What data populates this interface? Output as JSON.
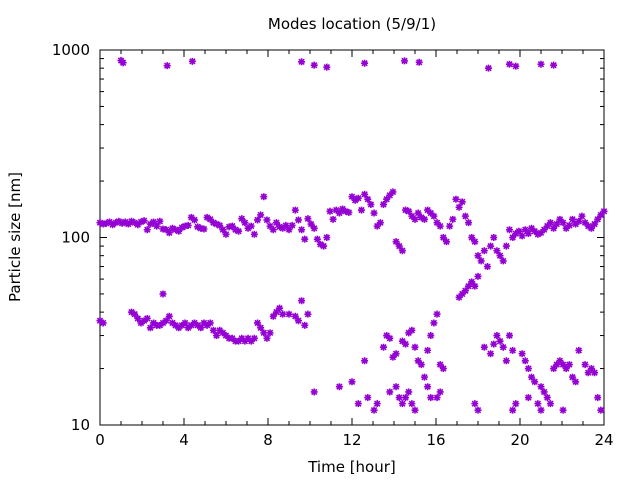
{
  "chart_data": {
    "type": "scatter",
    "title": "Modes location (5/9/1)",
    "xlabel": "Time [hour]",
    "ylabel": "Particle size [nm]",
    "xlim": [
      0,
      24
    ],
    "ylim": [
      10,
      1000
    ],
    "yscale": "log",
    "grid": false,
    "legend": "none",
    "x_ticks": [
      0,
      4,
      8,
      12,
      16,
      20,
      24
    ],
    "x_tick_labels": [
      "0",
      "4",
      "8",
      "12",
      "16",
      "20",
      "24"
    ],
    "y_ticks": [
      10,
      100,
      1000
    ],
    "y_tick_labels": [
      "10",
      "100",
      "1000"
    ],
    "marker_color": "#9400d3",
    "series": [
      {
        "points": [
          [
            0.0,
            120
          ],
          [
            0.15,
            118
          ],
          [
            0.3,
            119
          ],
          [
            0.45,
            121
          ],
          [
            0.6,
            117
          ],
          [
            0.75,
            120
          ],
          [
            0.9,
            122
          ],
          [
            1.05,
            119
          ],
          [
            1.2,
            121
          ],
          [
            1.35,
            118
          ],
          [
            1.5,
            122
          ],
          [
            1.65,
            120
          ],
          [
            1.8,
            117
          ],
          [
            1.95,
            121
          ],
          [
            2.1,
            123
          ],
          [
            2.25,
            110
          ],
          [
            2.4,
            118
          ],
          [
            2.55,
            121
          ],
          [
            2.7,
            115
          ],
          [
            2.85,
            122
          ],
          [
            3.0,
            111
          ],
          [
            3.15,
            110
          ],
          [
            3.3,
            106
          ],
          [
            3.45,
            112
          ],
          [
            3.6,
            110
          ],
          [
            3.75,
            108
          ],
          [
            3.9,
            113
          ],
          [
            4.05,
            115
          ],
          [
            4.2,
            116
          ],
          [
            4.35,
            128
          ],
          [
            4.5,
            124
          ],
          [
            4.65,
            114
          ],
          [
            4.8,
            112
          ],
          [
            4.95,
            111
          ],
          [
            5.1,
            128
          ],
          [
            5.25,
            125
          ],
          [
            5.4,
            120
          ],
          [
            5.55,
            118
          ],
          [
            5.7,
            116
          ],
          [
            5.85,
            110
          ],
          [
            6.0,
            104
          ],
          [
            6.15,
            114
          ],
          [
            6.3,
            115
          ],
          [
            6.45,
            110
          ],
          [
            6.6,
            108
          ],
          [
            6.75,
            126
          ],
          [
            6.9,
            120
          ],
          [
            7.05,
            112
          ],
          [
            7.2,
            115
          ],
          [
            7.35,
            104
          ],
          [
            7.5,
            124
          ],
          [
            7.65,
            132
          ],
          [
            7.8,
            165
          ],
          [
            7.95,
            124
          ],
          [
            8.1,
            115
          ],
          [
            8.25,
            110
          ],
          [
            8.4,
            120
          ],
          [
            8.55,
            114
          ],
          [
            8.7,
            112
          ],
          [
            8.85,
            116
          ],
          [
            9.0,
            110
          ],
          [
            9.15,
            116
          ],
          [
            9.3,
            140
          ],
          [
            9.45,
            124
          ],
          [
            9.6,
            110
          ],
          [
            9.75,
            98
          ],
          [
            9.9,
            126
          ],
          [
            10.05,
            118
          ],
          [
            10.2,
            112
          ],
          [
            10.35,
            98
          ],
          [
            10.5,
            92
          ],
          [
            10.65,
            90
          ],
          [
            10.8,
            100
          ],
          [
            10.95,
            138
          ],
          [
            11.1,
            125
          ],
          [
            11.25,
            140
          ],
          [
            11.4,
            135
          ],
          [
            11.55,
            142
          ],
          [
            11.7,
            138
          ],
          [
            11.85,
            136
          ],
          [
            12.0,
            165
          ],
          [
            12.15,
            158
          ],
          [
            12.3,
            162
          ],
          [
            12.45,
            140
          ],
          [
            12.6,
            170
          ],
          [
            12.75,
            160
          ],
          [
            12.9,
            150
          ],
          [
            13.05,
            135
          ],
          [
            13.2,
            115
          ],
          [
            13.35,
            120
          ],
          [
            13.5,
            150
          ],
          [
            13.65,
            160
          ],
          [
            13.8,
            168
          ],
          [
            13.95,
            175
          ],
          [
            14.1,
            95
          ],
          [
            14.25,
            90
          ],
          [
            14.4,
            85
          ],
          [
            14.55,
            140
          ],
          [
            14.7,
            138
          ],
          [
            14.85,
            130
          ],
          [
            15.0,
            125
          ],
          [
            15.15,
            135
          ],
          [
            15.3,
            128
          ],
          [
            15.45,
            125
          ],
          [
            15.6,
            140
          ],
          [
            15.75,
            135
          ],
          [
            15.9,
            130
          ],
          [
            16.05,
            120
          ],
          [
            16.2,
            115
          ],
          [
            16.35,
            100
          ],
          [
            16.5,
            95
          ],
          [
            16.65,
            115
          ],
          [
            16.8,
            125
          ],
          [
            16.95,
            160
          ],
          [
            17.1,
            145
          ],
          [
            17.25,
            155
          ],
          [
            17.4,
            130
          ],
          [
            17.55,
            120
          ],
          [
            17.7,
            100
          ],
          [
            17.85,
            95
          ],
          [
            18.0,
            80
          ],
          [
            18.15,
            75
          ],
          [
            18.3,
            85
          ],
          [
            18.45,
            70
          ],
          [
            18.6,
            90
          ],
          [
            18.75,
            100
          ],
          [
            18.9,
            85
          ],
          [
            19.05,
            80
          ],
          [
            19.2,
            75
          ],
          [
            19.35,
            90
          ],
          [
            19.5,
            110
          ],
          [
            19.65,
            100
          ],
          [
            19.8,
            105
          ],
          [
            19.95,
            108
          ],
          [
            20.1,
            102
          ],
          [
            20.25,
            110
          ],
          [
            20.4,
            105
          ],
          [
            20.55,
            112
          ],
          [
            20.7,
            108
          ],
          [
            20.85,
            104
          ],
          [
            21.0,
            106
          ],
          [
            21.15,
            110
          ],
          [
            21.3,
            115
          ],
          [
            21.45,
            120
          ],
          [
            21.6,
            112
          ],
          [
            21.75,
            118
          ],
          [
            21.9,
            125
          ],
          [
            22.05,
            120
          ],
          [
            22.2,
            112
          ],
          [
            22.35,
            116
          ],
          [
            22.5,
            125
          ],
          [
            22.65,
            118
          ],
          [
            22.8,
            122
          ],
          [
            22.95,
            130
          ],
          [
            23.1,
            120
          ],
          [
            23.25,
            115
          ],
          [
            23.4,
            112
          ],
          [
            23.55,
            118
          ],
          [
            23.7,
            125
          ],
          [
            23.85,
            132
          ],
          [
            24.0,
            138
          ],
          [
            0.0,
            36
          ],
          [
            0.15,
            35
          ],
          [
            1.5,
            40
          ],
          [
            1.65,
            39
          ],
          [
            1.8,
            37
          ],
          [
            1.95,
            35
          ],
          [
            2.1,
            36
          ],
          [
            2.25,
            37
          ],
          [
            2.4,
            33
          ],
          [
            2.55,
            35
          ],
          [
            2.7,
            34
          ],
          [
            2.85,
            34
          ],
          [
            3.0,
            35
          ],
          [
            3.15,
            36
          ],
          [
            3.3,
            38
          ],
          [
            3.45,
            35
          ],
          [
            3.6,
            34
          ],
          [
            3.75,
            33
          ],
          [
            3.9,
            34
          ],
          [
            4.05,
            35
          ],
          [
            4.2,
            33
          ],
          [
            4.35,
            34
          ],
          [
            4.5,
            35
          ],
          [
            4.65,
            34
          ],
          [
            4.8,
            33
          ],
          [
            4.95,
            35
          ],
          [
            5.1,
            34
          ],
          [
            5.25,
            35
          ],
          [
            5.4,
            32
          ],
          [
            5.55,
            30
          ],
          [
            5.7,
            32
          ],
          [
            5.85,
            31
          ],
          [
            6.0,
            30
          ],
          [
            6.15,
            29
          ],
          [
            6.3,
            29
          ],
          [
            6.45,
            28
          ],
          [
            6.6,
            28
          ],
          [
            6.75,
            29
          ],
          [
            6.9,
            28
          ],
          [
            7.05,
            29
          ],
          [
            7.2,
            28
          ],
          [
            7.35,
            29
          ],
          [
            7.5,
            35
          ],
          [
            7.65,
            33
          ],
          [
            7.8,
            31
          ],
          [
            7.95,
            29
          ],
          [
            8.1,
            31
          ],
          [
            8.25,
            38
          ],
          [
            8.4,
            40
          ],
          [
            8.55,
            42
          ],
          [
            8.7,
            39
          ],
          [
            9.0,
            39
          ],
          [
            9.3,
            38
          ],
          [
            9.45,
            36
          ],
          [
            9.6,
            46
          ],
          [
            9.75,
            34
          ],
          [
            9.9,
            39
          ],
          [
            3.0,
            50
          ],
          [
            13.5,
            26
          ],
          [
            13.65,
            30
          ],
          [
            13.8,
            29
          ],
          [
            13.95,
            23
          ],
          [
            14.1,
            24
          ],
          [
            14.4,
            28
          ],
          [
            14.55,
            27
          ],
          [
            14.7,
            31
          ],
          [
            14.85,
            32
          ],
          [
            15.0,
            26
          ],
          [
            15.15,
            22
          ],
          [
            15.3,
            21
          ],
          [
            15.45,
            18
          ],
          [
            15.6,
            25
          ],
          [
            15.75,
            30
          ],
          [
            15.9,
            35
          ],
          [
            16.05,
            39
          ],
          [
            16.2,
            21
          ],
          [
            16.35,
            20
          ],
          [
            17.1,
            48
          ],
          [
            17.25,
            50
          ],
          [
            17.4,
            52
          ],
          [
            17.55,
            55
          ],
          [
            17.7,
            58
          ],
          [
            17.85,
            55
          ],
          [
            18.0,
            62
          ],
          [
            18.3,
            26
          ],
          [
            18.6,
            24
          ],
          [
            18.75,
            27
          ],
          [
            18.9,
            30
          ],
          [
            19.05,
            28
          ],
          [
            19.2,
            26
          ],
          [
            19.35,
            22
          ],
          [
            19.5,
            30
          ],
          [
            19.65,
            25
          ],
          [
            20.1,
            24
          ],
          [
            20.25,
            22
          ],
          [
            20.4,
            20
          ],
          [
            20.55,
            18
          ],
          [
            20.7,
            17
          ],
          [
            20.85,
            13
          ],
          [
            21.0,
            16
          ],
          [
            21.15,
            15
          ],
          [
            21.3,
            14
          ],
          [
            21.45,
            13
          ],
          [
            21.6,
            20
          ],
          [
            21.75,
            21
          ],
          [
            21.9,
            22
          ],
          [
            22.05,
            21
          ],
          [
            22.2,
            20
          ],
          [
            22.35,
            21
          ],
          [
            22.5,
            18
          ],
          [
            22.65,
            17
          ],
          [
            22.8,
            25
          ],
          [
            23.1,
            21
          ],
          [
            23.25,
            19
          ],
          [
            23.4,
            20
          ],
          [
            23.55,
            19
          ],
          [
            23.7,
            14
          ],
          [
            23.85,
            12
          ],
          [
            10.2,
            15
          ],
          [
            11.4,
            16
          ],
          [
            12.0,
            17
          ],
          [
            12.3,
            13
          ],
          [
            12.6,
            22
          ],
          [
            12.75,
            14
          ],
          [
            13.05,
            12
          ],
          [
            13.2,
            13
          ],
          [
            13.8,
            15
          ],
          [
            14.1,
            16
          ],
          [
            14.25,
            14
          ],
          [
            14.4,
            13
          ],
          [
            14.55,
            14
          ],
          [
            14.7,
            15
          ],
          [
            14.85,
            13
          ],
          [
            15.0,
            12
          ],
          [
            15.6,
            16
          ],
          [
            15.75,
            14
          ],
          [
            16.05,
            14
          ],
          [
            16.2,
            15
          ],
          [
            17.85,
            13
          ],
          [
            18.0,
            12
          ],
          [
            19.65,
            12
          ],
          [
            19.8,
            13
          ],
          [
            20.4,
            14
          ],
          [
            21.0,
            12
          ],
          [
            22.05,
            12
          ],
          [
            1.0,
            880
          ],
          [
            1.1,
            855
          ],
          [
            3.2,
            825
          ],
          [
            4.4,
            870
          ],
          [
            9.6,
            865
          ],
          [
            10.2,
            830
          ],
          [
            10.8,
            810
          ],
          [
            12.6,
            850
          ],
          [
            14.5,
            875
          ],
          [
            15.2,
            860
          ],
          [
            18.5,
            800
          ],
          [
            19.5,
            840
          ],
          [
            19.8,
            820
          ],
          [
            21.0,
            840
          ],
          [
            21.6,
            830
          ]
        ]
      }
    ]
  }
}
